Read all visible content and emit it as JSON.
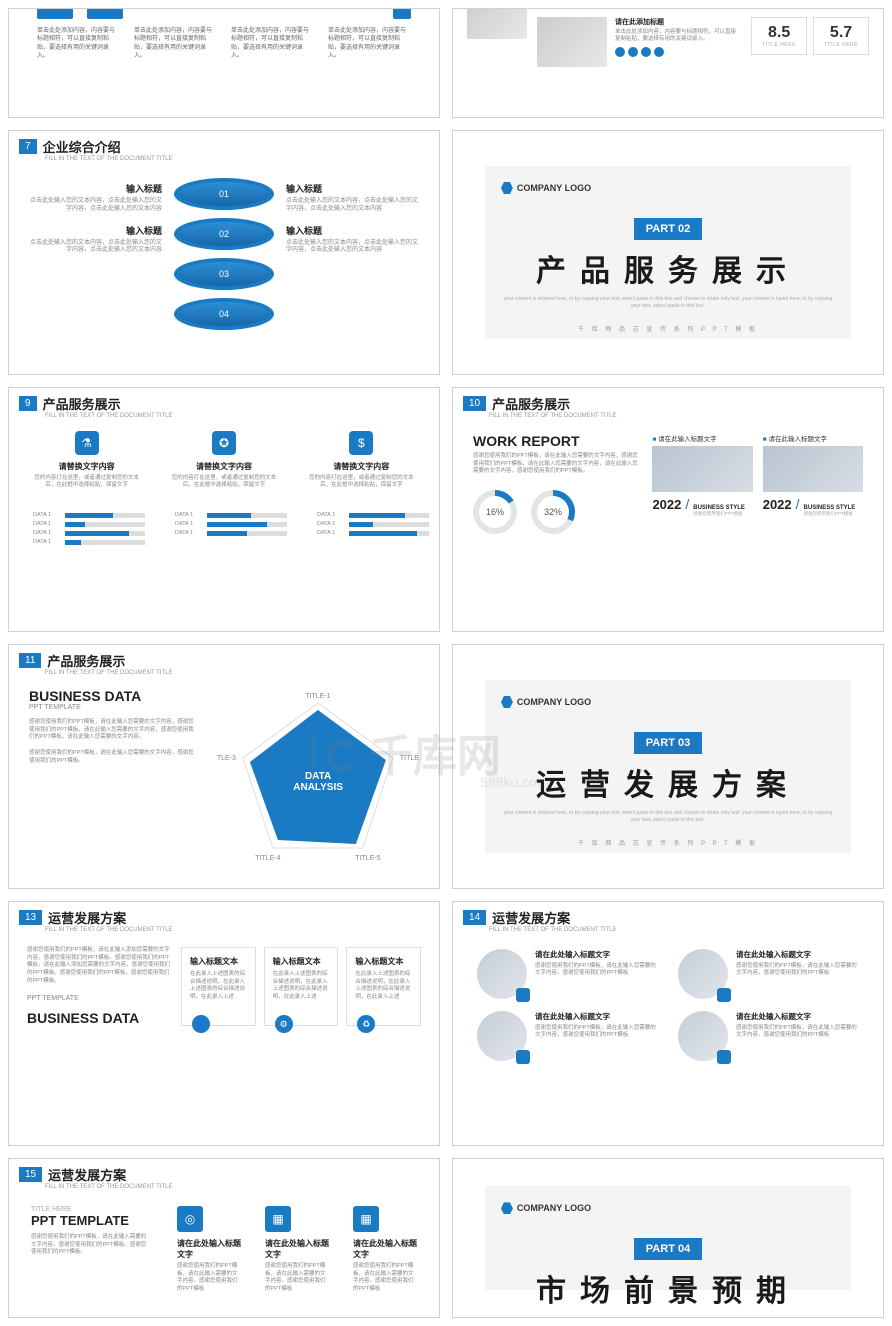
{
  "watermark": {
    "main": "⏐C 千库网",
    "sub": "588ku.com"
  },
  "accent": "#1b7ac4",
  "slides": {
    "s1": {
      "row_text": "单击此处添加内容，内容要与标题相符，可以直接复制粘贴，要选择有用的关键词录入。",
      "right_title": "请在此添加标题",
      "right_text": "单击此处添加内容，内容要与标题相符，可以直接复制粘贴，要选择有用的关键词录入。",
      "scores": [
        {
          "n": "8.5",
          "t": "TITLE HERE"
        },
        {
          "n": "5.7",
          "t": "TITLE HERE"
        }
      ]
    },
    "s7": {
      "num": "7",
      "title": "企业综合介绍",
      "sub": "FILL IN THE TEXT OF THE DOCUMENT TITLE",
      "labels": [
        "输入标题",
        "输入标题",
        "输入标题",
        "输入标题"
      ],
      "text": "点击此处输入您的文本内容，点击此处输入您的文字内容，点击此处输入您的文本内容",
      "rings": [
        "01",
        "02",
        "03",
        "04"
      ]
    },
    "part2": {
      "logo": "COMPANY LOGO",
      "part": "PART 02",
      "title": "产品服务展示",
      "sub": "your content is entered here, or by copying your text, select paste in this box and choose to retain only text.\nyour content is typed here, or by copying your text, select paste in this box.",
      "foot": "千 库 网 品 志 宣 传 系 列 P P T 模 板"
    },
    "s9": {
      "num": "9",
      "title": "产品服务展示",
      "sub": "FILL IN THE TEXT OF THE DOCUMENT TITLE",
      "cols": [
        {
          "ico": "⚗",
          "t": "请替换文字内容",
          "d": "您的内容打在这里，或者通过复制您的文本后，在此框中选择粘贴，保留文字"
        },
        {
          "ico": "✪",
          "t": "请替换文字内容",
          "d": "您的内容打在这里，或者通过复制您的文本后，在此框中选择粘贴，保留文字"
        },
        {
          "ico": "$",
          "t": "请替换文字内容",
          "d": "您的内容打在这里，或者通过复制您的文本后，在此框中选择粘贴，保留文字"
        }
      ],
      "bars": [
        [
          {
            "l": "DATA 1",
            "v": 60
          },
          {
            "l": "DATA 1",
            "v": 25
          },
          {
            "l": "DATA 1",
            "v": 80
          },
          {
            "l": "DATA 1",
            "v": 20
          }
        ],
        [
          {
            "l": "DATA 1",
            "v": 55
          },
          {
            "l": "DATA 1",
            "v": 75
          },
          {
            "l": "DATA 1",
            "v": 50
          }
        ],
        [
          {
            "l": "DATA 1",
            "v": 70
          },
          {
            "l": "DATA 1",
            "v": 30
          },
          {
            "l": "DATA 1",
            "v": 85
          }
        ]
      ]
    },
    "s10": {
      "num": "10",
      "title": "产品服务展示",
      "sub": "FILL IN THE TEXT OF THE DOCUMENT TITLE",
      "heading": "WORK REPORT",
      "text": "感谢您使用我们的PPT模板，请在此输入您需要的文字内容，感谢您使用我们的PPT模板，请在此输入您需要的文字内容，请在此输入您需要的文字内容，感谢您使用我们的PPT模板。",
      "pcts": [
        "16%",
        "32%"
      ],
      "cards": [
        {
          "t": "请在此输入标题文字",
          "yr": "2022",
          "bs": "BUSINESS STYLE",
          "sub": "感谢您使用我们PPT模板"
        },
        {
          "t": "请在此输入标题文字",
          "yr": "2022",
          "bs": "BUSINESS STYLE",
          "sub": "感谢您使用我们PPT模板"
        }
      ]
    },
    "s11": {
      "num": "11",
      "title": "产品服务展示",
      "sub": "FILL IN THE TEXT OF THE DOCUMENT TITLE",
      "heading": "BUSINESS DATA",
      "ppt": "PPT TEMPLATE",
      "p1": "感谢您使用我们的PPT模板，请在此输入您需要的文字内容，感谢您使用我们的PPT模板，请在此输入您需要的文字内容，感谢您使用我们的PPT模板，请在此输入您需要的文字内容。",
      "p2": "感谢您使用我们的PPT模板，请在此输入您需要的文字内容，感谢您使用我们的PPT模板。",
      "center": "DATA\nANALYSIS",
      "axes": [
        "TITLE-1",
        "TITLE-2",
        "TITLE-3",
        "TITLE-4",
        "TITLE-5"
      ]
    },
    "part3": {
      "logo": "COMPANY LOGO",
      "part": "PART 03",
      "title": "运营发展方案",
      "sub": "your content is entered here, or by copying your text, select paste in this box and choose to retain only text.\nyour content is typed here, or by copying your text, select paste in this box.",
      "foot": "千 库 网 品 志 宣 传 系 列 P P T 模 板"
    },
    "s13": {
      "num": "13",
      "title": "运营发展方案",
      "sub": "FILL IN THE TEXT OF THE DOCUMENT TITLE",
      "text": "感谢您使用我们的PPT模板，请在此输入添加您需要的文字内容，感谢您使用我们的PPT模板。感谢您使用我们的PPT模板，请在此输入添加您需要的文字内容，感谢您使用我们的PPT模板。感谢您使用我们的PPT模板，感谢您使用我们的PPT模板。",
      "ppt": "PPT TEMPLATE",
      "heading": "BUSINESS DATA",
      "cards": [
        {
          "t": "输入标题文本",
          "d": "在此录入上述图表的综合描述说明，在此录入上述图表的综合描述说明，在此录入上述",
          "ico": "👤"
        },
        {
          "t": "输入标题文本",
          "d": "在此录入上述图表的综合描述说明，在此录入上述图表的综合描述说明，在此录入上述",
          "ico": "⚙"
        },
        {
          "t": "输入标题文本",
          "d": "在此录入上述图表的综合描述说明，在此录入上述图表的综合描述说明，在此录入上述",
          "ico": "♻"
        }
      ]
    },
    "s14": {
      "num": "14",
      "title": "运营发展方案",
      "sub": "FILL IN THE TEXT OF THE DOCUMENT TITLE",
      "items": [
        {
          "t": "请在此处输入标题文字",
          "d": "感谢您使用我们的PPT模板，请在此输入您需要的文字内容，感谢您使用我们的PPT模板"
        },
        {
          "t": "请在此处输入标题文字",
          "d": "感谢您使用我们的PPT模板，请在此输入您需要的文字内容，感谢您使用我们的PPT模板"
        },
        {
          "t": "请在此处输入标题文字",
          "d": "感谢您使用我们的PPT模板，请在此输入您需要的文字内容，感谢您使用我们的PPT模板"
        },
        {
          "t": "请在此处输入标题文字",
          "d": "感谢您使用我们的PPT模板，请在此输入您需要的文字内容，感谢您使用我们的PPT模板"
        }
      ]
    },
    "s15": {
      "num": "15",
      "title": "运营发展方案",
      "sub": "FILL IN THE TEXT OF THE DOCUMENT TITLE",
      "tht": "TITLE HERE",
      "ppt": "PPT TEMPLATE",
      "text": "感谢您使用我们的PPT模板，请在此输入需要的文字内容，感谢您使用我们的PPT模板。感谢您使用我们的PPT模板。",
      "cols": [
        {
          "ico": "◎",
          "t": "请在此处输入标题文字",
          "d": "感谢您使用我们的PPT模板，请在此输入需要的文字内容，感谢您使用我们的PPT模板"
        },
        {
          "ico": "▦",
          "t": "请在此处输入标题文字",
          "d": "感谢您使用我们的PPT模板，请在此输入需要的文字内容，感谢您使用我们的PPT模板"
        },
        {
          "ico": "▦",
          "t": "请在此处输入标题文字",
          "d": "感谢您使用我们的PPT模板，请在此输入需要的文字内容，感谢您使用我们的PPT模板"
        }
      ]
    },
    "part4": {
      "logo": "COMPANY LOGO",
      "part": "PART 04",
      "title": "市场前景预期"
    }
  }
}
